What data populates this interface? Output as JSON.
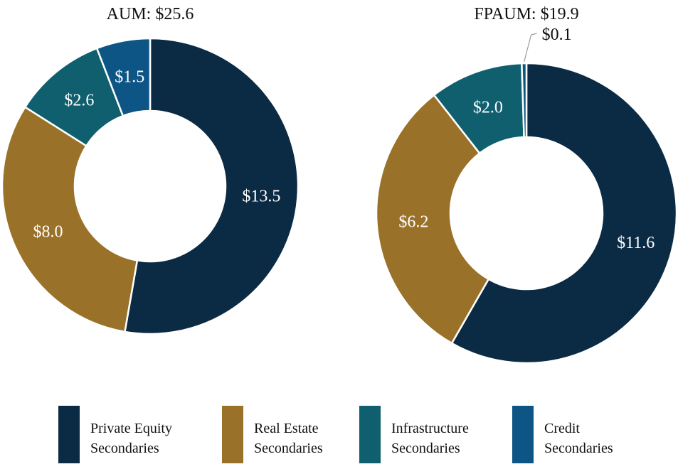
{
  "chart_data": [
    {
      "type": "pie",
      "title": "AUM: $25.6",
      "categories": [
        "Private Equity Secondaries",
        "Real Estate Secondaries",
        "Infrastructure Secondaries",
        "Credit Secondaries"
      ],
      "values": [
        13.5,
        8.0,
        2.6,
        1.5
      ],
      "labels": [
        "$13.5",
        "$8.0",
        "$2.6",
        "$1.5"
      ],
      "colors": [
        "#0b2a44",
        "#9a7128",
        "#0f5f6e",
        "#0d5585"
      ],
      "donut": true
    },
    {
      "type": "pie",
      "title": "FPAUM: $19.9",
      "categories": [
        "Private Equity Secondaries",
        "Real Estate Secondaries",
        "Infrastructure Secondaries",
        "Credit Secondaries"
      ],
      "values": [
        11.6,
        6.2,
        2.0,
        0.1
      ],
      "labels": [
        "$11.6",
        "$6.2",
        "$2.0",
        "$0.1"
      ],
      "colors": [
        "#0b2a44",
        "#9a7128",
        "#0f5f6e",
        "#0d5585"
      ],
      "donut": true
    }
  ],
  "legend": {
    "placement": "bottom",
    "items": [
      {
        "line1": "Private Equity",
        "line2": "Secondaries",
        "color": "#0b2a44"
      },
      {
        "line1": "Real Estate",
        "line2": "Secondaries",
        "color": "#9a7128"
      },
      {
        "line1": "Infrastructure",
        "line2": "Secondaries",
        "color": "#0f5f6e"
      },
      {
        "line1": "Credit",
        "line2": "Secondaries",
        "color": "#0d5585"
      }
    ]
  }
}
